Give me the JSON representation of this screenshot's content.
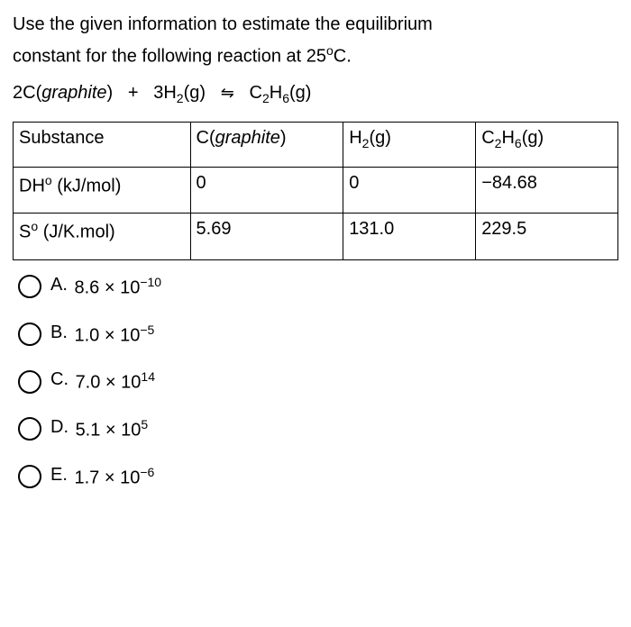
{
  "prompt": {
    "line1": "Use the given information to estimate the equilibrium",
    "line2_a": "constant for the following reaction at 25",
    "line2_b": "C."
  },
  "equation": {
    "lhs1_coef": "2C(",
    "lhs1_state": "graphite",
    "lhs1_close": ")",
    "plus": "+",
    "lhs2_coef": "3H",
    "lhs2_sub": "2",
    "lhs2_state": "(g)",
    "arrow": "⇋",
    "rhs_c": "C",
    "rhs_sub1": "2",
    "rhs_h": "H",
    "rhs_sub2": "6",
    "rhs_state": "(g)"
  },
  "table": {
    "headers": {
      "c0": "Substance",
      "c1_a": "C(",
      "c1_b": "graphite",
      "c1_c": ")",
      "c2_a": "H",
      "c2_sub": "2",
      "c2_b": "(g)",
      "c3_a": "C",
      "c3_sub1": "2",
      "c3_b": "H",
      "c3_sub2": "6",
      "c3_c": "(g)"
    },
    "row1": {
      "label_a": "DH",
      "label_sup": "o",
      "label_b": " (kJ/mol)",
      "v1": "0",
      "v2": "0",
      "v3": "−84.68"
    },
    "row2": {
      "label_a": "S",
      "label_sup": "o",
      "label_b": " (J/K.mol)",
      "v1": "5.69",
      "v2": "131.0",
      "v3": "229.5"
    }
  },
  "options": {
    "A": {
      "letter": "A.",
      "base": "8.6 × 10",
      "exp": "−10"
    },
    "B": {
      "letter": "B.",
      "base": "1.0 × 10",
      "exp": "−5"
    },
    "C": {
      "letter": "C.",
      "base": "7.0 × 10",
      "exp": "14"
    },
    "D": {
      "letter": "D.",
      "base": "5.1 × 10",
      "exp": "5"
    },
    "E": {
      "letter": "E.",
      "base": "1.7 × 10",
      "exp": "−6"
    }
  }
}
